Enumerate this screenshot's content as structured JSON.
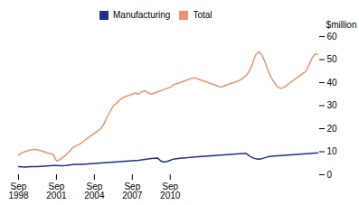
{
  "chart_data": {
    "type": "line",
    "y_label": "$million",
    "categories": [
      "Sep\n1998",
      null,
      null,
      null,
      null,
      null,
      null,
      null,
      null,
      null,
      null,
      null,
      "Sep\n2001",
      null,
      null,
      null,
      null,
      null,
      null,
      null,
      null,
      null,
      null,
      null,
      "Sep\n2004",
      null,
      null,
      null,
      null,
      null,
      null,
      null,
      null,
      null,
      null,
      null,
      "Sep\n2007",
      null,
      null,
      null,
      null,
      null,
      null,
      null,
      null,
      null,
      null,
      null,
      "Sep\n2010",
      null,
      null,
      null,
      null,
      null,
      null,
      null,
      null,
      null,
      null,
      null,
      null,
      null,
      null,
      null,
      null,
      null,
      null,
      null,
      null,
      null,
      null,
      null,
      null,
      null,
      null,
      null,
      null,
      null,
      null,
      null,
      null,
      null,
      null,
      null,
      null,
      null,
      null,
      null,
      null,
      null,
      null,
      null,
      null,
      null,
      null,
      null
    ],
    "series": [
      {
        "name": "Manufacturing",
        "color": "#1f2f8c",
        "values": [
          3.5,
          3.4,
          3.3,
          3.4,
          3.5,
          3.5,
          3.5,
          3.6,
          3.7,
          3.8,
          3.9,
          4.0,
          4.0,
          3.9,
          3.9,
          4.0,
          4.2,
          4.4,
          4.5,
          4.5,
          4.5,
          4.6,
          4.7,
          4.8,
          4.9,
          5.0,
          5.1,
          5.2,
          5.3,
          5.4,
          5.5,
          5.6,
          5.7,
          5.8,
          5.9,
          6.0,
          6.1,
          6.2,
          6.3,
          6.5,
          6.7,
          6.9,
          7.1,
          7.2,
          7.3,
          6.0,
          5.5,
          5.8,
          6.3,
          6.8,
          7.0,
          7.2,
          7.3,
          7.4,
          7.5,
          7.6,
          7.7,
          7.8,
          7.9,
          8.0,
          8.1,
          8.2,
          8.3,
          8.4,
          8.5,
          8.6,
          8.7,
          8.8,
          8.9,
          9.0,
          9.1,
          9.2,
          9.3,
          8.2,
          7.4,
          7.0,
          6.8,
          7.0,
          7.4,
          7.8,
          8.0,
          8.1,
          8.2,
          8.3,
          8.4,
          8.5,
          8.6,
          8.7,
          8.8,
          8.9,
          9.0,
          9.1,
          9.2,
          9.3,
          9.4,
          9.5
        ]
      },
      {
        "name": "Total",
        "color": "#e8956d",
        "values": [
          8.5,
          9.5,
          10.0,
          10.5,
          10.8,
          11.0,
          10.8,
          10.5,
          10.0,
          9.5,
          9.2,
          8.8,
          6.0,
          6.5,
          7.5,
          8.5,
          10.0,
          11.5,
          12.5,
          13.0,
          14.0,
          15.0,
          16.0,
          17.0,
          18.0,
          19.0,
          20.0,
          22.0,
          25.0,
          27.5,
          30.0,
          31.0,
          32.5,
          33.5,
          34.0,
          34.5,
          35.0,
          35.5,
          35.0,
          36.0,
          36.5,
          35.5,
          35.0,
          35.5,
          36.0,
          36.5,
          37.0,
          37.5,
          38.0,
          39.0,
          39.5,
          40.0,
          40.5,
          41.0,
          41.5,
          42.0,
          42.0,
          41.5,
          41.0,
          40.5,
          40.0,
          39.5,
          39.0,
          38.5,
          38.0,
          38.5,
          39.0,
          39.5,
          40.0,
          40.5,
          41.0,
          42.0,
          43.0,
          45.0,
          48.0,
          52.0,
          53.5,
          52.0,
          49.0,
          45.0,
          42.0,
          40.0,
          38.0,
          37.5,
          38.0,
          39.0,
          40.0,
          41.0,
          42.0,
          43.0,
          44.0,
          45.0,
          48.0,
          51.0,
          52.5,
          52.0
        ]
      }
    ],
    "ylim": [
      0,
      60
    ],
    "yticks": [
      0,
      10,
      20,
      30,
      40,
      50,
      60
    ],
    "grid": false,
    "legend": "top"
  }
}
